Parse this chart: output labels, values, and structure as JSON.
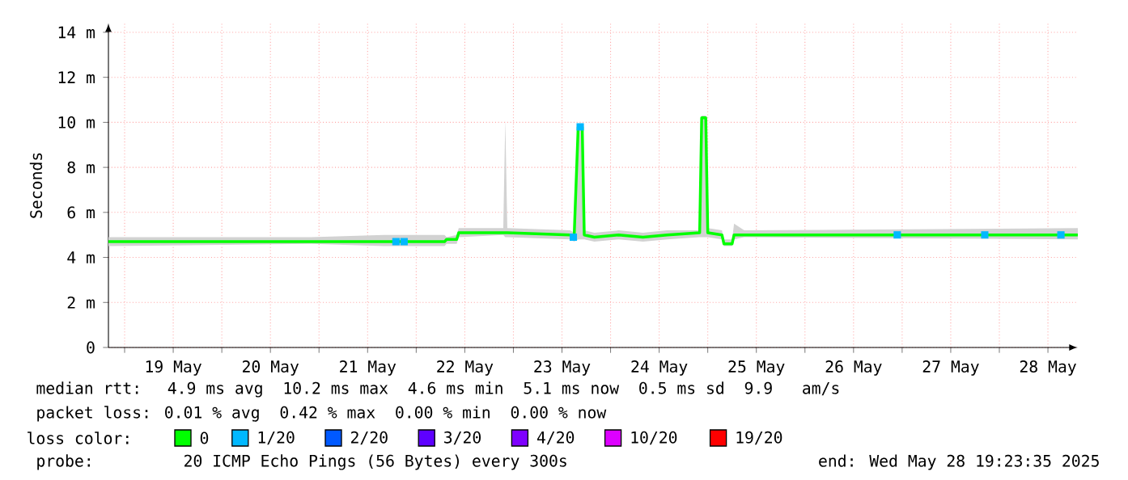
{
  "chart_data": {
    "type": "line",
    "ylabel": "Seconds",
    "xlim": [
      "2025-05-18T20:00",
      "2025-05-28T19:23"
    ],
    "xticks": [
      {
        "value": "2025-05-19T00:00",
        "label": null
      },
      {
        "value": "2025-05-19T12:00",
        "label": "19 May"
      },
      {
        "value": "2025-05-20T00:00",
        "label": null
      },
      {
        "value": "2025-05-20T12:00",
        "label": "20 May"
      },
      {
        "value": "2025-05-21T00:00",
        "label": null
      },
      {
        "value": "2025-05-21T12:00",
        "label": "21 May"
      },
      {
        "value": "2025-05-22T00:00",
        "label": null
      },
      {
        "value": "2025-05-22T12:00",
        "label": "22 May"
      },
      {
        "value": "2025-05-23T00:00",
        "label": null
      },
      {
        "value": "2025-05-23T12:00",
        "label": "23 May"
      },
      {
        "value": "2025-05-24T00:00",
        "label": null
      },
      {
        "value": "2025-05-24T12:00",
        "label": "24 May"
      },
      {
        "value": "2025-05-25T00:00",
        "label": null
      },
      {
        "value": "2025-05-25T12:00",
        "label": "25 May"
      },
      {
        "value": "2025-05-26T00:00",
        "label": null
      },
      {
        "value": "2025-05-26T12:00",
        "label": "26 May"
      },
      {
        "value": "2025-05-27T00:00",
        "label": null
      },
      {
        "value": "2025-05-27T12:00",
        "label": "27 May"
      },
      {
        "value": "2025-05-28T00:00",
        "label": null
      },
      {
        "value": "2025-05-28T12:00",
        "label": "28 May"
      }
    ],
    "ylim": [
      0,
      14.4
    ],
    "yticks": [
      {
        "value": 0,
        "label": "0"
      },
      {
        "value": 2,
        "label": "2 m"
      },
      {
        "value": 4,
        "label": "4 m"
      },
      {
        "value": 6,
        "label": "6 m"
      },
      {
        "value": 8,
        "label": "8 m"
      },
      {
        "value": 10,
        "label": "10 m"
      },
      {
        "value": 12,
        "label": "12 m"
      },
      {
        "value": 14,
        "label": "14 m"
      }
    ],
    "grid": true,
    "legend": "bottom",
    "legend_title": "loss color:",
    "series": [
      {
        "name": "0",
        "color": "#00ff00",
        "x": [
          "2025-05-18T20:00",
          "2025-05-20T22:00",
          "2025-05-21T16:00",
          "2025-05-22T07:00",
          "2025-05-22T07:30",
          "2025-05-22T10:00",
          "2025-05-22T10:30",
          "2025-05-22T21:30",
          "2025-05-22T22:00",
          "2025-05-22T22:30",
          "2025-05-23T14:00",
          "2025-05-23T15:00",
          "2025-05-23T16:00",
          "2025-05-23T17:00",
          "2025-05-23T17:30",
          "2025-05-23T20:00",
          "2025-05-24T02:00",
          "2025-05-24T08:00",
          "2025-05-24T14:00",
          "2025-05-24T22:00",
          "2025-05-24T22:30",
          "2025-05-24T23:30",
          "2025-05-25T00:00",
          "2025-05-25T03:30",
          "2025-05-25T04:00",
          "2025-05-25T06:00",
          "2025-05-25T06:30",
          "2025-05-25T09:00",
          "2025-05-28T19:23"
        ],
        "values": [
          4.7,
          4.7,
          4.7,
          4.7,
          4.8,
          4.8,
          5.1,
          5.1,
          5.1,
          5.1,
          5.0,
          4.9,
          9.8,
          9.8,
          5.0,
          4.9,
          5.0,
          4.9,
          5.0,
          5.1,
          10.2,
          10.2,
          5.1,
          5.0,
          4.6,
          4.6,
          5.0,
          5.0,
          5.0
        ],
        "lower": [
          4.5,
          4.6,
          4.5,
          4.5,
          4.6,
          4.6,
          4.9,
          5.0,
          4.9,
          4.9,
          4.8,
          4.7,
          4.8,
          4.8,
          4.8,
          4.7,
          4.8,
          4.7,
          4.8,
          4.9,
          4.9,
          4.9,
          4.9,
          4.8,
          4.5,
          4.5,
          4.8,
          4.9,
          4.8
        ],
        "upper": [
          4.9,
          4.9,
          5.0,
          5.0,
          4.9,
          5.0,
          5.3,
          5.3,
          10.1,
          5.3,
          5.2,
          5.1,
          9.9,
          9.9,
          5.2,
          5.1,
          5.2,
          5.1,
          5.2,
          5.2,
          10.3,
          10.3,
          5.3,
          5.2,
          4.8,
          4.8,
          5.5,
          5.2,
          5.3
        ]
      },
      {
        "name": "1/20",
        "type": "scatter",
        "marker": "square",
        "color": "#00b8ff",
        "x": [
          "2025-05-21T19:00",
          "2025-05-21T21:00",
          "2025-05-23T14:48",
          "2025-05-23T16:30",
          "2025-05-26T22:48",
          "2025-05-27T20:24",
          "2025-05-28T15:12"
        ],
        "values": [
          4.7,
          4.7,
          4.9,
          9.8,
          5.0,
          5.0,
          5.0
        ]
      },
      {
        "name": "2/20",
        "color": "#0059ff"
      },
      {
        "name": "3/20",
        "color": "#5e00ff"
      },
      {
        "name": "4/20",
        "color": "#7e00ff"
      },
      {
        "name": "10/20",
        "color": "#dd00ff"
      },
      {
        "name": "19/20",
        "color": "#ff0000"
      }
    ],
    "annotations": [
      "median rtt:  4.9 ms avg  10.2 ms max  4.6 ms min  5.1 ms now  0.5 ms sd  9.9   am/s",
      "packet loss: 0.01 % avg  0.42 % max  0.00 % min  0.00 % now",
      "probe:       20 ICMP Echo Pings (56 Bytes) every 300s",
      "end: Wed May 28 19:23:35 2025"
    ]
  }
}
